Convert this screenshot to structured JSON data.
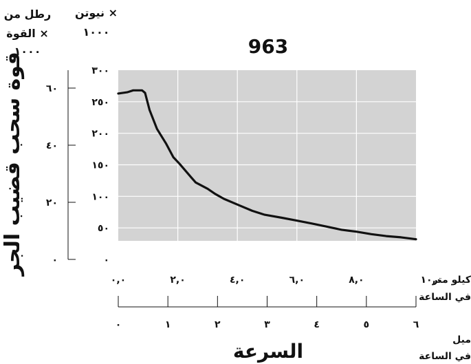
{
  "chart_data": {
    "type": "line",
    "title": "963",
    "ylabel": "قوة سحب قضيب الجر",
    "xlabel": "السرعة",
    "left_axis_unit": [
      "رطل من",
      "القوة ×",
      "١٠٠٠"
    ],
    "right_axis_unit": [
      "نيوتن ×",
      "١٠٠٠"
    ],
    "km_unit": [
      "كيلو متر",
      "في الساعة"
    ],
    "mile_unit": [
      "ميل",
      "في الساعة"
    ],
    "xlim": [
      0,
      10
    ],
    "ylim": [
      0,
      300
    ],
    "grid": true,
    "newton_ticks": [
      {
        "v": 0,
        "label": "٠"
      },
      {
        "v": 50,
        "label": "٥٠"
      },
      {
        "v": 100,
        "label": "١٠٠"
      },
      {
        "v": 150,
        "label": "١٥٠"
      },
      {
        "v": 200,
        "label": "٢٠٠"
      },
      {
        "v": 250,
        "label": "٢٥٠"
      },
      {
        "v": 300,
        "label": "٣٠٠"
      }
    ],
    "pound_ticks": [
      {
        "v": 0,
        "label": "٠"
      },
      {
        "v": 20,
        "label": "٢٠"
      },
      {
        "v": 40,
        "label": "٤٠"
      },
      {
        "v": 60,
        "label": "٦٠"
      }
    ],
    "km_ticks": [
      {
        "v": 0,
        "label": "٠,٠"
      },
      {
        "v": 2,
        "label": "٢,٠"
      },
      {
        "v": 4,
        "label": "٤,٠"
      },
      {
        "v": 6,
        "label": "٦,٠"
      },
      {
        "v": 8,
        "label": "٨,٠"
      },
      {
        "v": 10,
        "label": "١٠,٠"
      }
    ],
    "mile_ticks": [
      {
        "v": 0,
        "label": "٠"
      },
      {
        "v": 1,
        "label": "١"
      },
      {
        "v": 2,
        "label": "٢"
      },
      {
        "v": 3,
        "label": "٣"
      },
      {
        "v": 4,
        "label": "٤"
      },
      {
        "v": 5,
        "label": "٥"
      },
      {
        "v": 6,
        "label": "٦"
      }
    ],
    "series": [
      {
        "x": [
          0,
          0.3,
          0.5,
          0.7,
          0.8,
          0.9,
          1.05,
          1.3,
          1.6,
          1.85,
          2.05,
          2.45,
          2.6,
          3.0,
          3.25,
          3.55,
          4.05,
          4.5,
          4.9,
          5.5,
          5.95,
          6.5,
          7.0,
          7.5,
          8.0,
          8.5,
          9.0,
          9.5,
          10.0
        ],
        "y": [
          263,
          265,
          268,
          268,
          268,
          264,
          237,
          207,
          184,
          162,
          152,
          130,
          122,
          112,
          104,
          96,
          86,
          77,
          71,
          66,
          62,
          57,
          52,
          47,
          44,
          40,
          37,
          35,
          32
        ]
      }
    ],
    "colors": {
      "plot_bg": "#d3d3d3",
      "grid": "#ffffff",
      "line": "#111111"
    }
  }
}
